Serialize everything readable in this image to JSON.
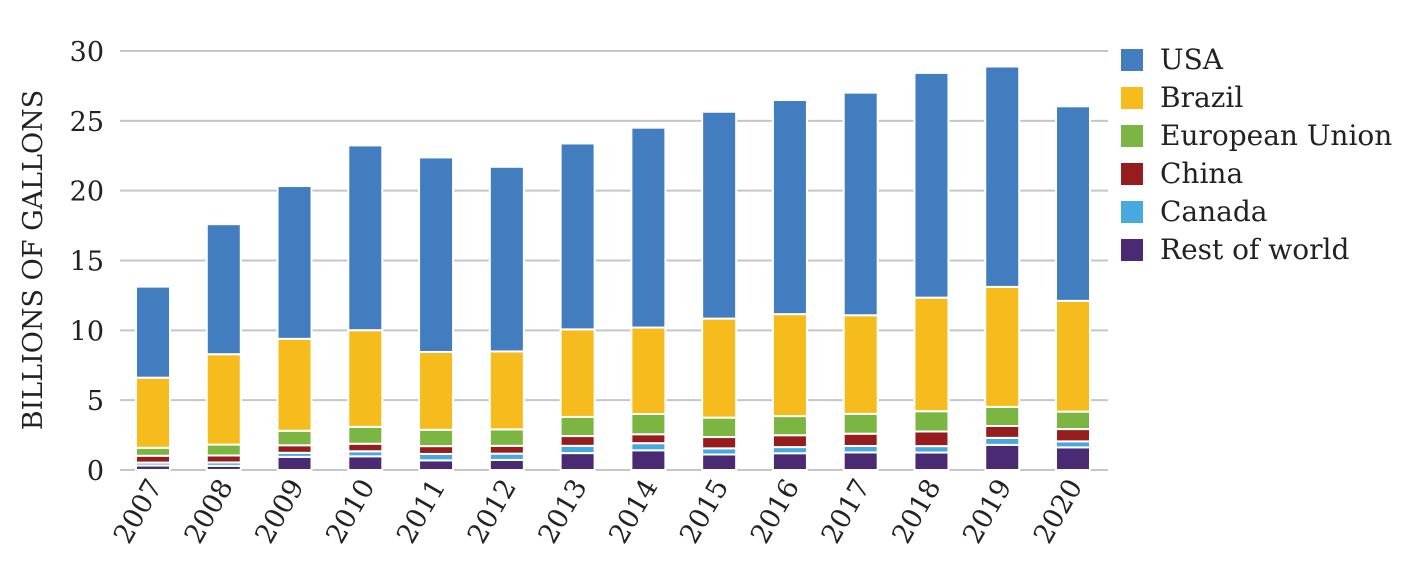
{
  "chart_data": {
    "type": "bar",
    "stacked": true,
    "title": "",
    "xlabel": "",
    "ylabel": "BILLIONS OF GALLONS",
    "ylim": [
      0,
      30
    ],
    "yticks": [
      0,
      5,
      10,
      15,
      20,
      25,
      30
    ],
    "grid": true,
    "legend_position": "right",
    "categories": [
      "2007",
      "2008",
      "2009",
      "2010",
      "2011",
      "2012",
      "2013",
      "2014",
      "2015",
      "2016",
      "2017",
      "2018",
      "2019",
      "2020"
    ],
    "series": [
      {
        "name": "Rest of world",
        "color": "#4a2a72",
        "values": [
          0.32,
          0.3,
          0.94,
          0.98,
          0.69,
          0.72,
          1.21,
          1.41,
          1.11,
          1.2,
          1.26,
          1.25,
          1.8,
          1.62
        ]
      },
      {
        "name": "Canada",
        "color": "#46a9e0",
        "values": [
          0.21,
          0.24,
          0.29,
          0.36,
          0.46,
          0.45,
          0.52,
          0.51,
          0.44,
          0.44,
          0.46,
          0.46,
          0.5,
          0.43
        ]
      },
      {
        "name": "China",
        "color": "#961c1d",
        "values": [
          0.49,
          0.5,
          0.54,
          0.54,
          0.56,
          0.56,
          0.7,
          0.64,
          0.81,
          0.85,
          0.88,
          1.05,
          0.85,
          0.88
        ]
      },
      {
        "name": "European Union",
        "color": "#7ab641",
        "values": [
          0.57,
          0.78,
          1.04,
          1.21,
          1.17,
          1.18,
          1.37,
          1.45,
          1.39,
          1.37,
          1.42,
          1.45,
          1.37,
          1.25
        ]
      },
      {
        "name": "Brazil",
        "color": "#f6bb1c",
        "values": [
          5.02,
          6.47,
          6.58,
          6.92,
          5.57,
          5.58,
          6.27,
          6.19,
          7.09,
          7.3,
          7.06,
          8.13,
          8.59,
          7.93
        ]
      },
      {
        "name": "USA",
        "color": "#427dbf",
        "values": [
          6.52,
          9.31,
          10.94,
          13.23,
          13.93,
          13.22,
          13.31,
          14.31,
          14.81,
          15.33,
          15.94,
          16.09,
          15.78,
          13.93
        ]
      }
    ],
    "legend_order": [
      "USA",
      "Brazil",
      "European Union",
      "China",
      "Canada",
      "Rest of world"
    ]
  }
}
